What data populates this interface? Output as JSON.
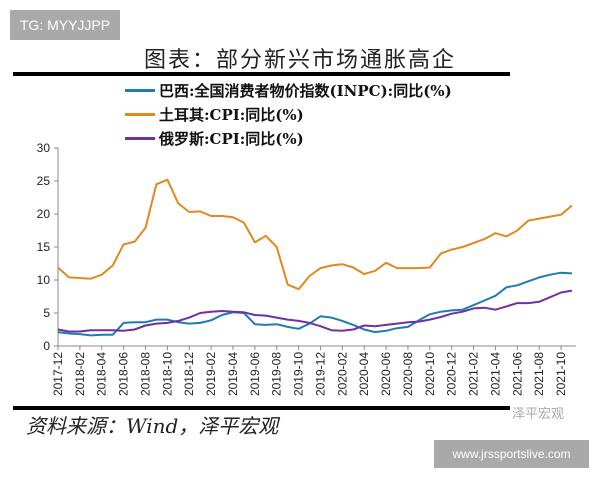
{
  "watermark_top": "TG: MYYJJPP",
  "title": "图表：部分新兴市场通胀高企",
  "source": "资料来源：Wind，泽平宏观",
  "watermark_logo": "泽平宏观",
  "watermark_bottom": "www.jrssportslive.com",
  "chart_data": {
    "type": "line",
    "title": "",
    "xlabel": "",
    "ylabel": "",
    "ylim": [
      0,
      30
    ],
    "yticks": [
      0,
      5,
      10,
      15,
      20,
      25,
      30
    ],
    "grid": false,
    "legend_placement": "top",
    "x": [
      "2017-12",
      "2018-01",
      "2018-02",
      "2018-03",
      "2018-04",
      "2018-05",
      "2018-06",
      "2018-07",
      "2018-08",
      "2018-09",
      "2018-10",
      "2018-11",
      "2018-12",
      "2019-01",
      "2019-02",
      "2019-03",
      "2019-04",
      "2019-05",
      "2019-06",
      "2019-07",
      "2019-08",
      "2019-09",
      "2019-10",
      "2019-11",
      "2019-12",
      "2020-01",
      "2020-02",
      "2020-03",
      "2020-04",
      "2020-05",
      "2020-06",
      "2020-07",
      "2020-08",
      "2020-09",
      "2020-10",
      "2020-11",
      "2020-12",
      "2021-01",
      "2021-02",
      "2021-03",
      "2021-04",
      "2021-05",
      "2021-06",
      "2021-07",
      "2021-08",
      "2021-09",
      "2021-10",
      "2021-11"
    ],
    "xtick_labels": [
      "2017-12",
      "2018-02",
      "2018-04",
      "2018-06",
      "2018-08",
      "2018-10",
      "2018-12",
      "2019-02",
      "2019-04",
      "2019-06",
      "2019-08",
      "2019-10",
      "2019-12",
      "2020-02",
      "2020-04",
      "2020-06",
      "2020-08",
      "2020-10",
      "2020-12",
      "2021-02",
      "2021-04",
      "2021-06",
      "2021-08",
      "2021-10"
    ],
    "series": [
      {
        "name": "巴西:全国消费者物价指数(INPC):同比(%)",
        "color": "#1f7bb5",
        "values": [
          2.1,
          1.9,
          1.8,
          1.6,
          1.7,
          1.7,
          3.5,
          3.6,
          3.6,
          4.0,
          4.0,
          3.6,
          3.4,
          3.5,
          3.9,
          4.7,
          5.1,
          5.0,
          3.3,
          3.2,
          3.3,
          2.9,
          2.6,
          3.4,
          4.5,
          4.3,
          3.8,
          3.2,
          2.5,
          2.1,
          2.3,
          2.7,
          2.9,
          3.9,
          4.8,
          5.2,
          5.4,
          5.5,
          6.2,
          6.9,
          7.6,
          8.9,
          9.2,
          9.8,
          10.4,
          10.8,
          11.1,
          11.0
        ]
      },
      {
        "name": "土耳其:CPI:同比(%)",
        "color": "#e08a1e",
        "values": [
          11.9,
          10.4,
          10.3,
          10.2,
          10.8,
          12.2,
          15.4,
          15.8,
          17.9,
          24.5,
          25.2,
          21.6,
          20.3,
          20.4,
          19.7,
          19.7,
          19.5,
          18.7,
          15.7,
          16.7,
          15.0,
          9.3,
          8.6,
          10.6,
          11.8,
          12.2,
          12.4,
          11.9,
          10.9,
          11.4,
          12.6,
          11.8,
          11.8,
          11.8,
          11.9,
          14.0,
          14.6,
          15.0,
          15.6,
          16.2,
          17.1,
          16.6,
          17.5,
          19.0,
          19.3,
          19.6,
          19.9,
          21.3
        ]
      },
      {
        "name": "俄罗斯:CPI:同比(%)",
        "color": "#7030a0",
        "values": [
          2.5,
          2.2,
          2.2,
          2.4,
          2.4,
          2.4,
          2.3,
          2.5,
          3.1,
          3.4,
          3.5,
          3.8,
          4.3,
          5.0,
          5.2,
          5.3,
          5.2,
          5.1,
          4.7,
          4.6,
          4.3,
          4.0,
          3.8,
          3.5,
          3.0,
          2.4,
          2.3,
          2.5,
          3.1,
          3.0,
          3.2,
          3.4,
          3.6,
          3.7,
          4.0,
          4.4,
          4.9,
          5.2,
          5.7,
          5.8,
          5.5,
          6.0,
          6.5,
          6.5,
          6.7,
          7.4,
          8.1,
          8.4
        ]
      }
    ]
  }
}
